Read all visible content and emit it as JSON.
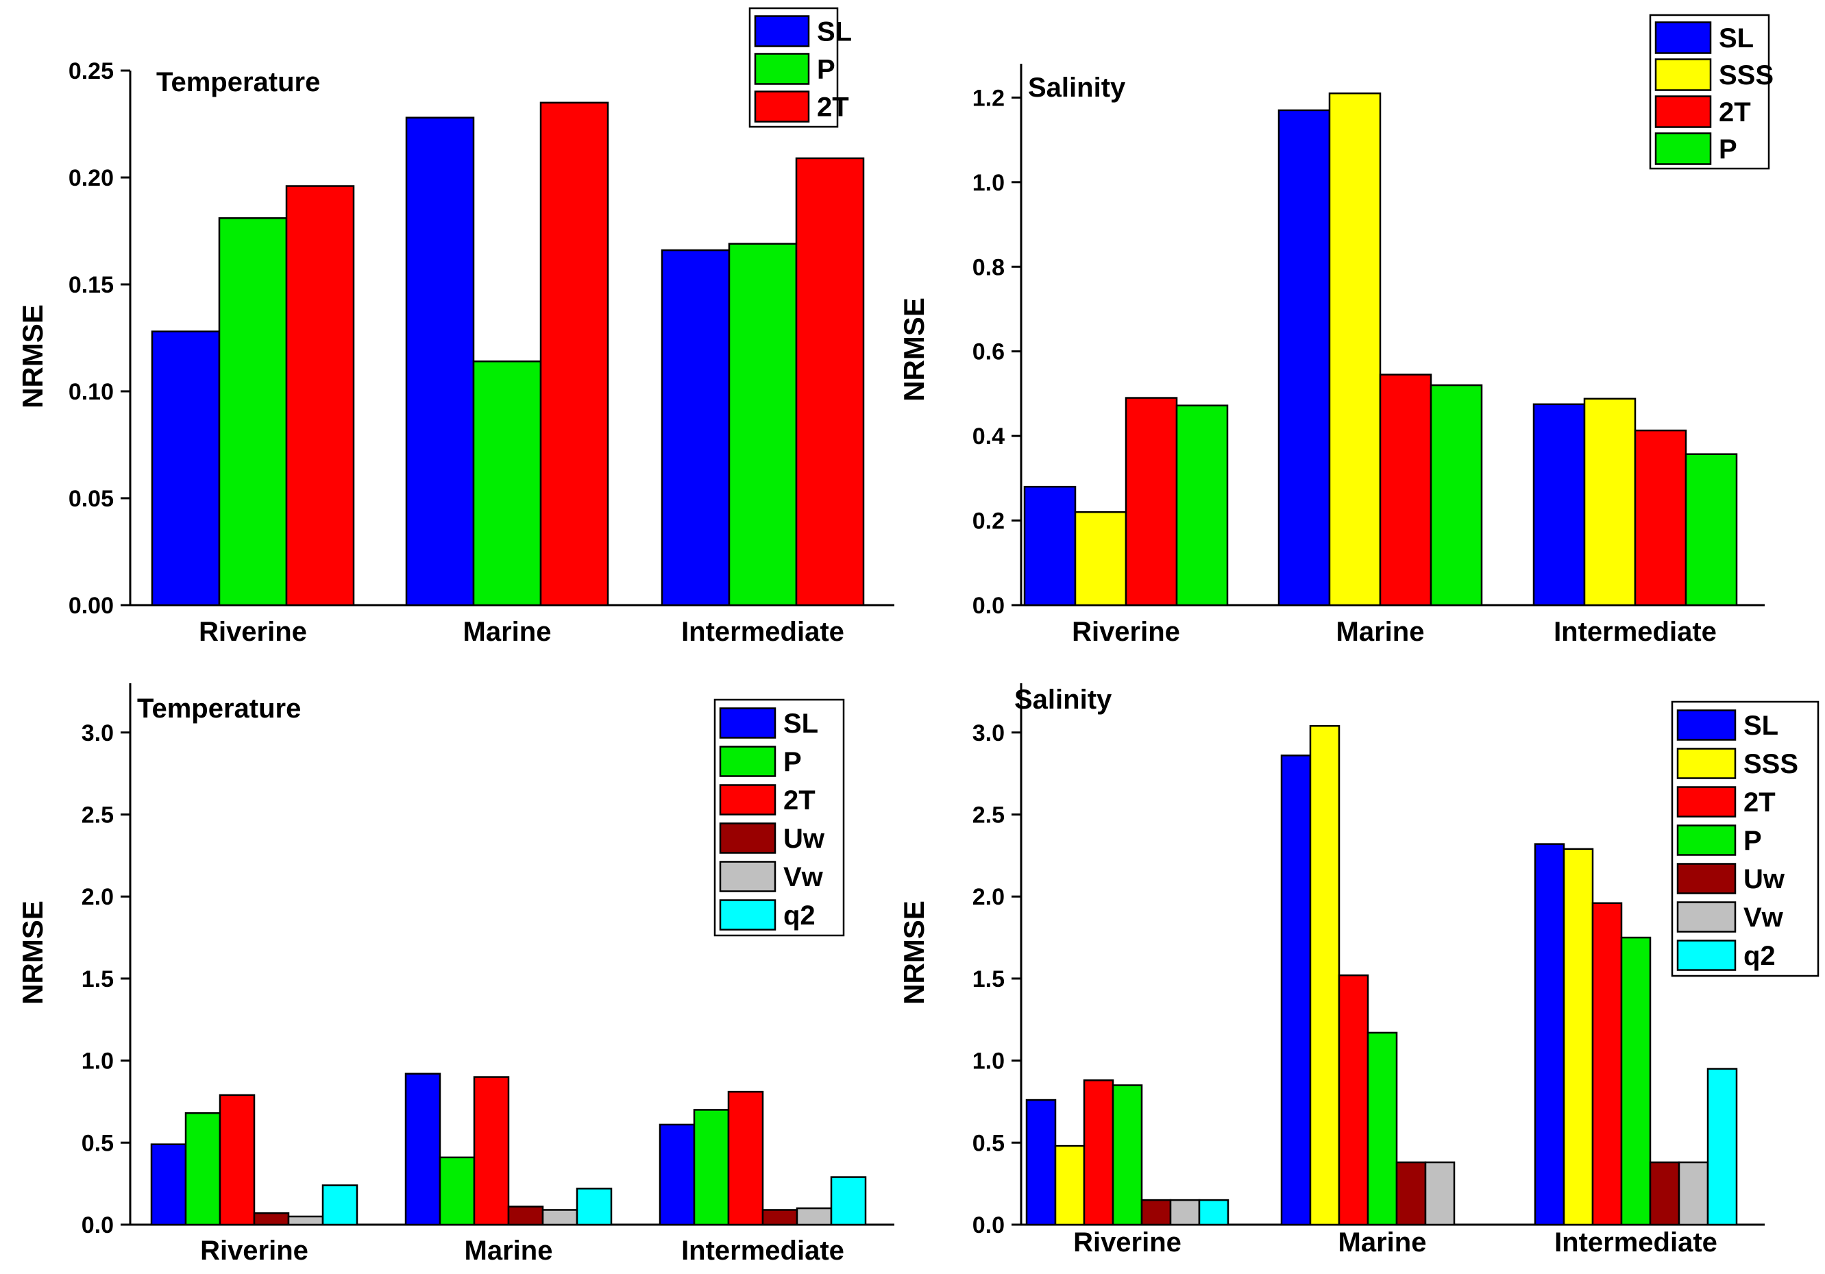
{
  "chart_data": [
    {
      "type": "bar",
      "title": "Temperature",
      "ylabel": "NRMSE",
      "xlabel": "",
      "ylim": [
        0,
        0.25
      ],
      "yticks": [
        "0.00",
        "0.05",
        "0.10",
        "0.15",
        "0.20",
        "0.25"
      ],
      "categories": [
        "Riverine",
        "Marine",
        "Intermediate"
      ],
      "legend_position": "top-right",
      "series": [
        {
          "name": "SL",
          "color": "#0000ff",
          "values": [
            0.128,
            0.228,
            0.166
          ]
        },
        {
          "name": "P",
          "color": "#00ee00",
          "values": [
            0.181,
            0.114,
            0.169
          ]
        },
        {
          "name": "2T",
          "color": "#ff0000",
          "values": [
            0.196,
            0.235,
            0.209
          ]
        }
      ]
    },
    {
      "type": "bar",
      "title": "Salinity",
      "ylabel": "NRMSE",
      "xlabel": "",
      "ylim": [
        0,
        1.28
      ],
      "yticks": [
        "0.0",
        "0.2",
        "0.4",
        "0.6",
        "0.8",
        "1.0",
        "1.2"
      ],
      "categories": [
        "Riverine",
        "Marine",
        "Intermediate"
      ],
      "legend_position": "top-right",
      "series": [
        {
          "name": "SL",
          "color": "#0000ff",
          "values": [
            0.28,
            1.17,
            0.475
          ]
        },
        {
          "name": "SSS",
          "color": "#ffff00",
          "values": [
            0.22,
            1.21,
            0.488
          ]
        },
        {
          "name": "2T",
          "color": "#ff0000",
          "values": [
            0.49,
            0.545,
            0.413
          ]
        },
        {
          "name": "P",
          "color": "#00ee00",
          "values": [
            0.472,
            0.52,
            0.357
          ]
        }
      ]
    },
    {
      "type": "bar",
      "title": "Temperature",
      "ylabel": "NRMSE",
      "xlabel": "",
      "ylim": [
        0,
        3.3
      ],
      "yticks": [
        "0.0",
        "0.5",
        "1.0",
        "1.5",
        "2.0",
        "2.5",
        "3.0"
      ],
      "categories": [
        "Riverine",
        "Marine",
        "Intermediate"
      ],
      "legend_position": "top-right",
      "series": [
        {
          "name": "SL",
          "color": "#0000ff",
          "values": [
            0.49,
            0.92,
            0.61
          ]
        },
        {
          "name": "P",
          "color": "#00ee00",
          "values": [
            0.68,
            0.41,
            0.7
          ]
        },
        {
          "name": "2T",
          "color": "#ff0000",
          "values": [
            0.79,
            0.9,
            0.81
          ]
        },
        {
          "name": "Uw",
          "color": "#990000",
          "values": [
            0.07,
            0.11,
            0.09
          ]
        },
        {
          "name": "Vw",
          "color": "#c0c0c0",
          "values": [
            0.05,
            0.09,
            0.1
          ]
        },
        {
          "name": "q2",
          "color": "#00ffff",
          "values": [
            0.24,
            0.22,
            0.29
          ]
        }
      ]
    },
    {
      "type": "bar",
      "title": "Salinity",
      "ylabel": "NRMSE",
      "xlabel": "",
      "ylim": [
        0,
        3.3
      ],
      "yticks": [
        "0.0",
        "0.5",
        "1.0",
        "1.5",
        "2.0",
        "2.5",
        "3.0"
      ],
      "categories": [
        "Riverine",
        "Marine",
        "Intermediate"
      ],
      "legend_position": "top-right",
      "series": [
        {
          "name": "SL",
          "color": "#0000ff",
          "values": [
            0.76,
            2.86,
            2.32
          ]
        },
        {
          "name": "SSS",
          "color": "#ffff00",
          "values": [
            0.48,
            3.04,
            2.29
          ]
        },
        {
          "name": "2T",
          "color": "#ff0000",
          "values": [
            0.88,
            1.52,
            1.96
          ]
        },
        {
          "name": "P",
          "color": "#00ee00",
          "values": [
            0.85,
            1.17,
            1.75
          ]
        },
        {
          "name": "Uw",
          "color": "#990000",
          "values": [
            0.15,
            0.38,
            0.38
          ]
        },
        {
          "name": "Vw",
          "color": "#c0c0c0",
          "values": [
            0.15,
            0.38,
            0.38
          ]
        },
        {
          "name": "q2",
          "color": "#00ffff",
          "values": [
            0.15,
            null,
            0.95
          ]
        }
      ]
    }
  ]
}
